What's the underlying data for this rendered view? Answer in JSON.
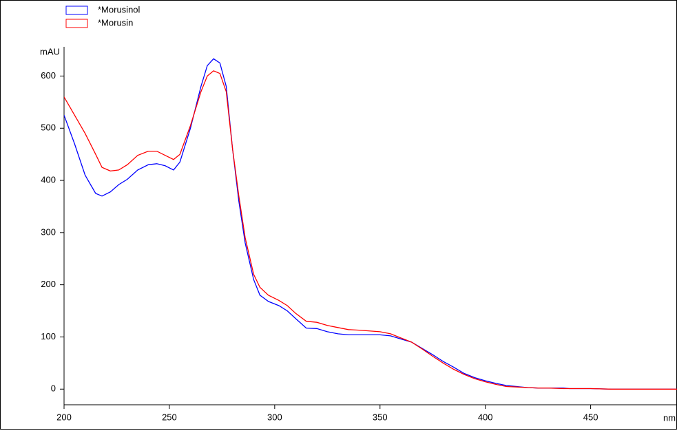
{
  "chart_data": {
    "type": "line",
    "x_label": "nm",
    "y_label": "mAU",
    "x": [
      200,
      205,
      210,
      215,
      218,
      222,
      226,
      230,
      235,
      240,
      244,
      248,
      252,
      255,
      260,
      265,
      268,
      271,
      274,
      277,
      280,
      283,
      286,
      290,
      293,
      297,
      302,
      306,
      310,
      315,
      320,
      325,
      330,
      335,
      340,
      350,
      355,
      360,
      365,
      370,
      375,
      380,
      385,
      390,
      395,
      400,
      405,
      410,
      415,
      420,
      425,
      430,
      437,
      440,
      450,
      460,
      470,
      480,
      491
    ],
    "series": [
      {
        "name": "*Morusinol",
        "color": "#0000ff",
        "values": [
          525,
          470,
          410,
          375,
          370,
          378,
          392,
          402,
          420,
          430,
          432,
          428,
          420,
          435,
          500,
          580,
          620,
          633,
          625,
          580,
          460,
          360,
          280,
          210,
          180,
          168,
          160,
          150,
          135,
          117,
          116,
          110,
          106,
          104,
          104,
          104,
          102,
          96,
          90,
          78,
          66,
          53,
          42,
          30,
          22,
          16,
          11,
          7,
          5,
          3,
          2,
          2,
          2,
          1,
          1,
          0,
          0,
          0,
          0
        ]
      },
      {
        "name": "*Morusin",
        "color": "#ff0000",
        "values": [
          560,
          525,
          490,
          450,
          425,
          418,
          420,
          430,
          448,
          456,
          456,
          448,
          440,
          450,
          505,
          570,
          600,
          610,
          605,
          570,
          460,
          370,
          290,
          220,
          195,
          180,
          170,
          160,
          145,
          130,
          128,
          122,
          118,
          114,
          113,
          110,
          106,
          98,
          90,
          77,
          63,
          50,
          38,
          28,
          20,
          14,
          9,
          5,
          4,
          3,
          2,
          2,
          1,
          1,
          1,
          0,
          0,
          0,
          0
        ]
      }
    ],
    "xlim": [
      200,
      491
    ],
    "xticks": [
      200,
      250,
      300,
      350,
      400,
      450
    ],
    "ylim": [
      -30,
      656
    ],
    "yticks": [
      0,
      100,
      200,
      300,
      400,
      500,
      600
    ]
  }
}
